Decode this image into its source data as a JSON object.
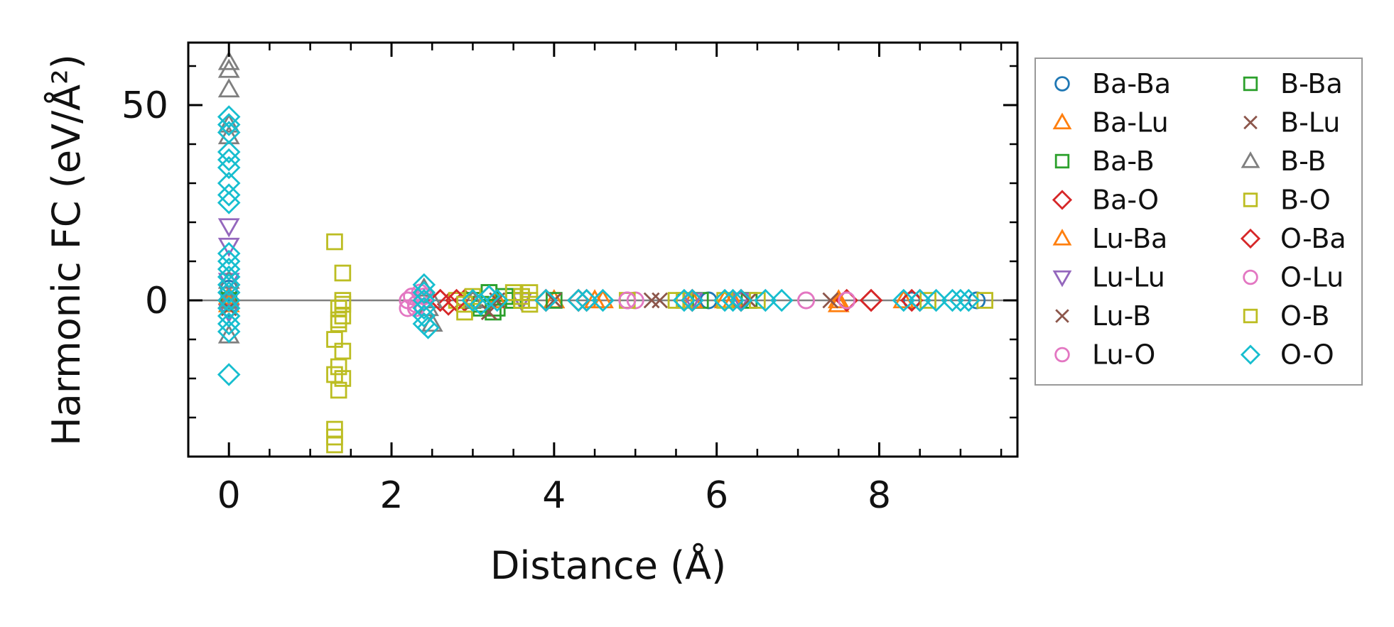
{
  "chart_data": {
    "type": "scatter",
    "xlabel": "Distance (Å)",
    "ylabel": "Harmonic FC (eV/Å²)",
    "xlim": [
      -0.5,
      9.7
    ],
    "ylim": [
      -40,
      66
    ],
    "x_ticks": [
      0,
      2,
      4,
      6,
      8
    ],
    "x_tick_labels": [
      "0",
      "2",
      "4",
      "6",
      "8"
    ],
    "y_ticks": [
      0,
      50
    ],
    "y_tick_labels": [
      "0",
      "50"
    ],
    "x_minor_ticks": [
      -0.5,
      0.5,
      1,
      1.5,
      2.5,
      3,
      3.5,
      4.5,
      5,
      5.5,
      6.5,
      7,
      7.5,
      8.5,
      9,
      9.5
    ],
    "y_minor_ticks": [
      -30,
      -20,
      -10,
      10,
      20,
      30,
      40,
      60
    ],
    "zero_line": true,
    "grid": false,
    "legend_placement": "outside-right",
    "legend_columns": 2,
    "series": [
      {
        "name": "Ba-Ba",
        "marker": "circle",
        "color": "#1f77b4",
        "points": [
          [
            0,
            0
          ],
          [
            0,
            3
          ],
          [
            0,
            -2
          ],
          [
            5.6,
            0
          ],
          [
            5.9,
            0
          ],
          [
            6.3,
            0
          ],
          [
            8.4,
            0
          ],
          [
            9.2,
            0
          ]
        ]
      },
      {
        "name": "Ba-Lu",
        "marker": "triangle-up",
        "color": "#ff7f0e",
        "points": [
          [
            0,
            1
          ],
          [
            3.3,
            0
          ],
          [
            4.0,
            0
          ],
          [
            4.5,
            0
          ],
          [
            5.7,
            0
          ],
          [
            6.1,
            0
          ],
          [
            7.5,
            -1
          ],
          [
            8.3,
            0
          ]
        ]
      },
      {
        "name": "Ba-B",
        "marker": "square",
        "color": "#2ca02c",
        "points": [
          [
            0,
            0
          ],
          [
            3.0,
            0
          ],
          [
            3.1,
            -1
          ],
          [
            3.2,
            2
          ],
          [
            3.3,
            -2
          ],
          [
            3.5,
            1
          ],
          [
            3.6,
            0
          ],
          [
            5.8,
            0
          ],
          [
            6.4,
            0
          ]
        ]
      },
      {
        "name": "Ba-O",
        "marker": "diamond",
        "color": "#d62728",
        "points": [
          [
            0,
            0
          ],
          [
            2.6,
            0
          ],
          [
            2.7,
            -1
          ],
          [
            2.9,
            0
          ],
          [
            3.2,
            1
          ],
          [
            3.9,
            0
          ],
          [
            4.3,
            0
          ],
          [
            4.4,
            0
          ],
          [
            5.7,
            0
          ],
          [
            6.3,
            0
          ],
          [
            7.6,
            0
          ],
          [
            7.9,
            0
          ],
          [
            8.5,
            0
          ]
        ]
      },
      {
        "name": "Lu-Ba",
        "marker": "triangle-up",
        "color": "#ff7f0e",
        "points": [
          [
            0,
            -1
          ],
          [
            3.3,
            0
          ],
          [
            4.0,
            0
          ],
          [
            4.6,
            0
          ],
          [
            5.7,
            0
          ],
          [
            6.2,
            0
          ],
          [
            7.5,
            0
          ]
        ]
      },
      {
        "name": "Lu-Lu",
        "marker": "triangle-down",
        "color": "#9467bd",
        "points": [
          [
            0,
            19
          ],
          [
            0,
            14
          ],
          [
            0,
            5
          ],
          [
            0,
            -3
          ],
          [
            3.6,
            0
          ],
          [
            5.7,
            0
          ],
          [
            6.3,
            0
          ]
        ]
      },
      {
        "name": "Lu-B",
        "marker": "x",
        "color": "#8c564b",
        "points": [
          [
            0,
            -2
          ],
          [
            3.2,
            -3
          ],
          [
            3.3,
            0
          ],
          [
            4.0,
            0
          ],
          [
            5.2,
            0
          ],
          [
            6.4,
            0
          ],
          [
            7.4,
            0
          ]
        ]
      },
      {
        "name": "Lu-O",
        "marker": "circle",
        "color": "#e377c2",
        "points": [
          [
            2.2,
            0
          ],
          [
            2.2,
            -2
          ],
          [
            2.25,
            1
          ],
          [
            2.3,
            -1
          ],
          [
            2.35,
            2
          ],
          [
            2.4,
            0
          ],
          [
            4.9,
            0
          ],
          [
            5.0,
            0
          ],
          [
            7.1,
            0
          ],
          [
            7.6,
            0
          ]
        ]
      },
      {
        "name": "B-Ba",
        "marker": "square",
        "color": "#2ca02c",
        "points": [
          [
            3.0,
            0
          ],
          [
            3.1,
            -2
          ],
          [
            3.2,
            2
          ],
          [
            3.25,
            -3
          ],
          [
            3.4,
            1
          ],
          [
            3.5,
            0
          ],
          [
            4.0,
            0
          ]
        ]
      },
      {
        "name": "B-Lu",
        "marker": "x",
        "color": "#8c564b",
        "points": [
          [
            3.2,
            -3
          ],
          [
            3.3,
            0
          ],
          [
            4.0,
            0
          ],
          [
            5.3,
            0
          ],
          [
            6.4,
            0
          ]
        ]
      },
      {
        "name": "B-B",
        "marker": "triangle-up",
        "color": "#7f7f7f",
        "points": [
          [
            0,
            61
          ],
          [
            0,
            59
          ],
          [
            0,
            54
          ],
          [
            0,
            45
          ],
          [
            0,
            42
          ],
          [
            0,
            5
          ],
          [
            0,
            0
          ],
          [
            0,
            -9
          ],
          [
            2.4,
            3
          ],
          [
            2.45,
            -2
          ],
          [
            2.5,
            -6
          ],
          [
            2.5,
            0
          ],
          [
            3.0,
            0
          ]
        ]
      },
      {
        "name": "B-O",
        "marker": "square",
        "color": "#bcbd22",
        "points": [
          [
            1.3,
            15
          ],
          [
            1.35,
            -6
          ],
          [
            1.35,
            -2
          ],
          [
            1.4,
            0
          ],
          [
            1.4,
            7
          ],
          [
            1.3,
            -10
          ],
          [
            1.3,
            -19
          ],
          [
            1.35,
            -23
          ],
          [
            1.4,
            -20
          ],
          [
            1.3,
            -33
          ],
          [
            1.3,
            -35
          ],
          [
            1.3,
            -37
          ],
          [
            1.4,
            -13
          ],
          [
            1.35,
            -17
          ],
          [
            1.4,
            -4
          ],
          [
            2.8,
            0
          ],
          [
            2.9,
            -3
          ],
          [
            3.5,
            2
          ],
          [
            3.6,
            1
          ],
          [
            3.7,
            -1
          ],
          [
            3.7,
            0
          ],
          [
            4.9,
            0
          ],
          [
            5.6,
            0
          ]
        ]
      },
      {
        "name": "O-Ba",
        "marker": "diamond",
        "color": "#d62728",
        "points": [
          [
            2.6,
            0
          ],
          [
            2.8,
            0
          ],
          [
            3.9,
            0
          ],
          [
            4.3,
            0
          ],
          [
            5.7,
            0
          ],
          [
            6.3,
            0
          ],
          [
            7.9,
            0
          ],
          [
            8.4,
            0
          ]
        ]
      },
      {
        "name": "O-Lu",
        "marker": "circle",
        "color": "#e377c2",
        "points": [
          [
            2.2,
            0
          ],
          [
            2.3,
            -2
          ],
          [
            2.4,
            1
          ],
          [
            4.9,
            0
          ],
          [
            7.1,
            0
          ],
          [
            7.6,
            0
          ]
        ]
      },
      {
        "name": "O-B",
        "marker": "square",
        "color": "#bcbd22",
        "points": [
          [
            1.35,
            -5
          ],
          [
            1.4,
            -1
          ],
          [
            2.9,
            -1
          ],
          [
            3.0,
            1
          ],
          [
            3.6,
            0
          ],
          [
            3.7,
            2
          ],
          [
            5.5,
            0
          ],
          [
            6.1,
            0
          ],
          [
            6.5,
            0
          ],
          [
            8.6,
            0
          ],
          [
            9.3,
            0
          ]
        ]
      },
      {
        "name": "O-O",
        "marker": "diamond",
        "color": "#17becf",
        "points": [
          [
            0,
            47
          ],
          [
            0,
            45
          ],
          [
            0,
            43
          ],
          [
            0,
            38
          ],
          [
            0,
            36
          ],
          [
            0,
            34
          ],
          [
            0,
            30
          ],
          [
            0,
            27
          ],
          [
            0,
            25
          ],
          [
            0,
            12
          ],
          [
            0,
            10
          ],
          [
            0,
            8
          ],
          [
            0,
            6
          ],
          [
            0,
            4
          ],
          [
            0,
            2
          ],
          [
            0,
            0
          ],
          [
            0,
            -2
          ],
          [
            0,
            -4
          ],
          [
            0,
            -6
          ],
          [
            0,
            -8
          ],
          [
            0,
            -19
          ],
          [
            2.4,
            4
          ],
          [
            2.4,
            2
          ],
          [
            2.4,
            0
          ],
          [
            2.4,
            -2
          ],
          [
            2.4,
            -4
          ],
          [
            2.4,
            -6
          ],
          [
            2.45,
            -7
          ],
          [
            3.0,
            0
          ],
          [
            3.1,
            -1
          ],
          [
            3.2,
            1
          ],
          [
            3.3,
            0
          ],
          [
            3.9,
            0
          ],
          [
            4.3,
            0
          ],
          [
            4.4,
            0
          ],
          [
            4.6,
            0
          ],
          [
            5.6,
            0
          ],
          [
            5.7,
            0
          ],
          [
            6.1,
            0
          ],
          [
            6.2,
            0
          ],
          [
            6.3,
            0
          ],
          [
            6.6,
            0
          ],
          [
            6.8,
            0
          ],
          [
            8.3,
            0
          ],
          [
            8.5,
            0
          ],
          [
            8.7,
            0
          ],
          [
            8.9,
            0
          ],
          [
            9.0,
            0
          ],
          [
            9.1,
            0
          ]
        ]
      }
    ]
  }
}
